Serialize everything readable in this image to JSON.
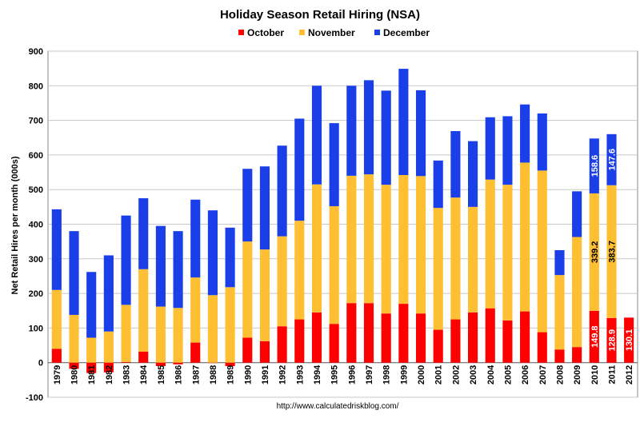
{
  "chart_data": {
    "type": "bar",
    "stacked": true,
    "title": "Holiday Season Retail Hiring (NSA)",
    "ylabel": "Net Retail Hires per month (000s)",
    "xlabel": "",
    "ylim": [
      -100,
      900
    ],
    "yticks": [
      -100,
      0,
      100,
      200,
      300,
      400,
      500,
      600,
      700,
      800,
      900
    ],
    "legend_position": "top-center",
    "grid": true,
    "source": "http://www.calculatedriskblog.com/",
    "categories": [
      "1979",
      "1980",
      "1981",
      "1982",
      "1983",
      "1984",
      "1985",
      "1986",
      "1987",
      "1988",
      "1989",
      "1990",
      "1991",
      "1992",
      "1993",
      "1994",
      "1995",
      "1996",
      "1997",
      "1998",
      "1999",
      "2000",
      "2001",
      "2002",
      "2003",
      "2004",
      "2005",
      "2006",
      "2007",
      "2008",
      "2009",
      "2010",
      "2011",
      "2012"
    ],
    "series": [
      {
        "name": "October",
        "color": "#ff0000",
        "values": [
          40,
          -18,
          -30,
          -28,
          2,
          32,
          -10,
          -5,
          58,
          0,
          -10,
          72,
          62,
          105,
          125,
          145,
          112,
          172,
          172,
          142,
          170,
          142,
          95,
          125,
          145,
          157,
          122,
          148,
          88,
          38,
          45,
          149.8,
          128.9,
          130.1
        ]
      },
      {
        "name": "November",
        "color": "#ffbf33",
        "values": [
          170,
          138,
          72,
          90,
          165,
          238,
          162,
          158,
          188,
          195,
          218,
          278,
          265,
          260,
          285,
          370,
          340,
          368,
          372,
          372,
          372,
          397,
          352,
          352,
          305,
          372,
          392,
          430,
          467,
          215,
          318,
          339.2,
          383.7,
          null
        ]
      },
      {
        "name": "December",
        "color": "#1a3fe8",
        "values": [
          233,
          242,
          190,
          220,
          258,
          205,
          233,
          222,
          225,
          245,
          172,
          210,
          240,
          262,
          295,
          285,
          240,
          260,
          272,
          272,
          307,
          248,
          137,
          192,
          190,
          180,
          198,
          168,
          165,
          72,
          132,
          158.6,
          147.6,
          null
        ]
      }
    ],
    "data_labels": [
      {
        "category": "2010",
        "series": "October",
        "text": "149.8"
      },
      {
        "category": "2010",
        "series": "November",
        "text": "339.2"
      },
      {
        "category": "2010",
        "series": "December",
        "text": "158.6"
      },
      {
        "category": "2011",
        "series": "October",
        "text": "128.9"
      },
      {
        "category": "2011",
        "series": "November",
        "text": "383.7"
      },
      {
        "category": "2011",
        "series": "December",
        "text": "147.6"
      },
      {
        "category": "2012",
        "series": "October",
        "text": "130.1"
      }
    ]
  }
}
